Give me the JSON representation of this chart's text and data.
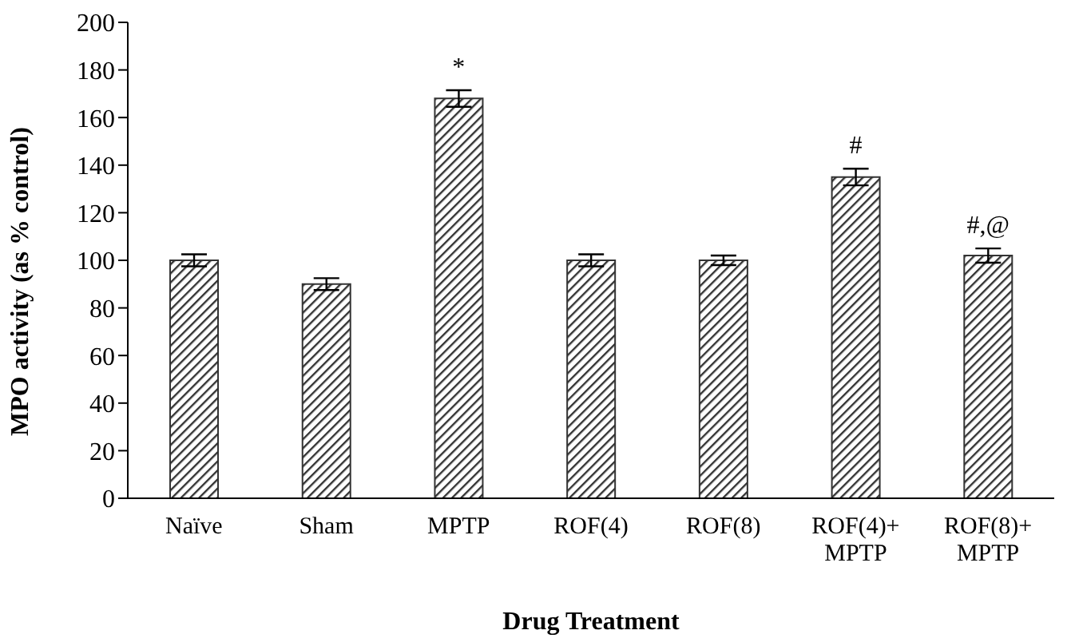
{
  "chart_data": {
    "type": "bar",
    "xlabel": "Drug Treatment",
    "ylabel": "MPO activity (as % control)",
    "categories": [
      "Naïve",
      "Sham",
      "MPTP",
      "ROF(4)",
      "ROF(8)",
      "ROF(4)+\nMPTP",
      "ROF(8)+\nMPTP"
    ],
    "values": [
      100,
      90,
      168,
      100,
      100,
      135,
      102
    ],
    "errors": [
      2.5,
      2.5,
      3.5,
      2.5,
      2,
      3.5,
      3
    ],
    "color": "#333333",
    "ylim": [
      0,
      200
    ],
    "yticks": [
      0,
      20,
      40,
      60,
      80,
      100,
      120,
      140,
      160,
      180,
      200
    ],
    "grid": false,
    "legend": false,
    "annotations": [
      {
        "text": "*",
        "x": "MPTP",
        "y": 168
      },
      {
        "text": "#",
        "x": "ROF(4)+\nMPTP",
        "y": 135
      },
      {
        "text": "#,@",
        "x": "ROF(8)+\nMPTP",
        "y": 102
      }
    ]
  }
}
